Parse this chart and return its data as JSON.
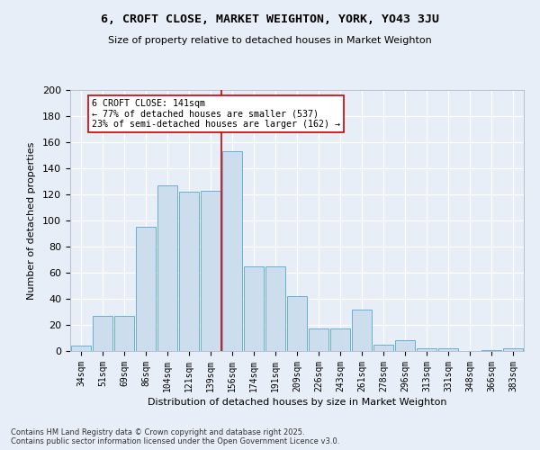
{
  "title": "6, CROFT CLOSE, MARKET WEIGHTON, YORK, YO43 3JU",
  "subtitle": "Size of property relative to detached houses in Market Weighton",
  "xlabel": "Distribution of detached houses by size in Market Weighton",
  "ylabel": "Number of detached properties",
  "categories": [
    "34sqm",
    "51sqm",
    "69sqm",
    "86sqm",
    "104sqm",
    "121sqm",
    "139sqm",
    "156sqm",
    "174sqm",
    "191sqm",
    "209sqm",
    "226sqm",
    "243sqm",
    "261sqm",
    "278sqm",
    "296sqm",
    "313sqm",
    "331sqm",
    "348sqm",
    "366sqm",
    "383sqm"
  ],
  "values": [
    4,
    27,
    27,
    95,
    127,
    122,
    123,
    153,
    65,
    65,
    42,
    17,
    17,
    32,
    5,
    8,
    2,
    2,
    0,
    1,
    2
  ],
  "bar_color": "#ccdded",
  "bar_edge_color": "#6aafd4",
  "background_color": "#e8eef7",
  "grid_color": "#ffffff",
  "vline_color": "#cc0000",
  "annotation_text": "6 CROFT CLOSE: 141sqm\n← 77% of detached houses are smaller (537)\n23% of semi-detached houses are larger (162) →",
  "annotation_box_color": "#ffffff",
  "annotation_box_edge": "#cc0000",
  "footer": "Contains HM Land Registry data © Crown copyright and database right 2025.\nContains public sector information licensed under the Open Government Licence v3.0.",
  "ylim": [
    0,
    200
  ],
  "yticks": [
    0,
    20,
    40,
    60,
    80,
    100,
    120,
    140,
    160,
    180,
    200
  ]
}
